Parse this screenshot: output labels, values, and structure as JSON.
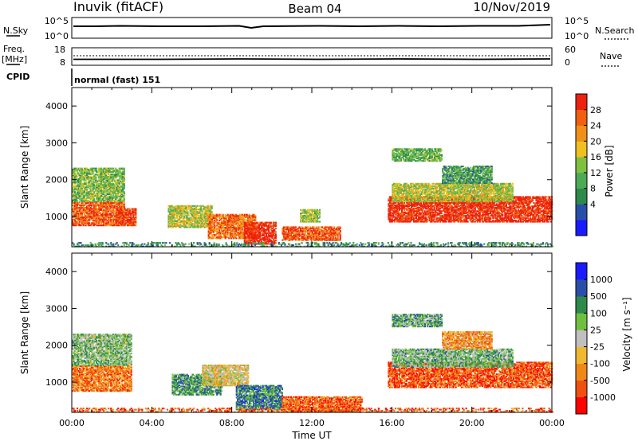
{
  "header": {
    "title_left": "Inuvik (fitACF)",
    "title_center": "Beam 04",
    "title_right": "10/Nov/2019"
  },
  "status_panels": {
    "nsky_label": "N.Sky",
    "nsky_ticks": [
      "10^5",
      "10^0"
    ],
    "nsearch_label": "N.Search",
    "nsearch_ticks": [
      "10^5",
      "10^0"
    ],
    "freq_label_line1": "Freq.",
    "freq_label_line2": "[MHz]",
    "freq_ticks": [
      "18",
      "8"
    ],
    "nave_label": "Nave",
    "nave_ticks": [
      "60",
      "0"
    ],
    "cpid_label": "CPID",
    "cpid_value": "normal (fast) 151"
  },
  "chart_data": [
    {
      "type": "heatmap",
      "name": "power-panel",
      "ylabel": "Slant Range [km]",
      "x_ticks": [
        "00:00",
        "04:00",
        "08:00",
        "12:00",
        "16:00",
        "20:00",
        "00:00"
      ],
      "y_ticks": [
        1000,
        2000,
        3000,
        4000
      ],
      "xlim_hours": [
        0,
        24
      ],
      "ylim_km": [
        180,
        4500
      ],
      "colorbar": {
        "label": "Power [dB]",
        "ticks": [
          "28",
          "24",
          "20",
          "16",
          "12",
          "8",
          "4"
        ],
        "colors": [
          "#1a1aff",
          "#2a4fa8",
          "#2e8a4a",
          "#4daa55",
          "#80c040",
          "#f0c020",
          "#f09018",
          "#f06010",
          "#ee2010"
        ]
      },
      "regions": [
        {
          "t": [
            0.0,
            2.6
          ],
          "r": [
            750,
            1400
          ],
          "level": 0.85
        },
        {
          "t": [
            0.0,
            2.6
          ],
          "r": [
            1400,
            2300
          ],
          "level": 0.45
        },
        {
          "t": [
            2.2,
            3.2
          ],
          "r": [
            750,
            1200
          ],
          "level": 0.9
        },
        {
          "t": [
            4.8,
            7.0
          ],
          "r": [
            700,
            1300
          ],
          "level": 0.55
        },
        {
          "t": [
            6.8,
            9.2
          ],
          "r": [
            400,
            1050
          ],
          "level": 0.8
        },
        {
          "t": [
            8.6,
            10.2
          ],
          "r": [
            250,
            850
          ],
          "level": 0.95
        },
        {
          "t": [
            10.5,
            13.4
          ],
          "r": [
            350,
            720
          ],
          "level": 0.85
        },
        {
          "t": [
            11.4,
            12.4
          ],
          "r": [
            850,
            1200
          ],
          "level": 0.5
        },
        {
          "t": [
            15.8,
            24.0
          ],
          "r": [
            850,
            1550
          ],
          "level": 0.95
        },
        {
          "t": [
            16.0,
            22.0
          ],
          "r": [
            1400,
            1900
          ],
          "level": 0.55
        },
        {
          "t": [
            16.0,
            18.5
          ],
          "r": [
            2500,
            2850
          ],
          "level": 0.4
        },
        {
          "t": [
            18.5,
            21.0
          ],
          "r": [
            1900,
            2350
          ],
          "level": 0.35
        },
        {
          "t": [
            0.0,
            24.0
          ],
          "r": [
            180,
            300
          ],
          "level": 0.3
        }
      ]
    },
    {
      "type": "heatmap",
      "name": "velocity-panel",
      "ylabel": "Slant Range [km]",
      "x_ticks": [
        "00:00",
        "04:00",
        "08:00",
        "12:00",
        "16:00",
        "20:00",
        "00:00"
      ],
      "xlabel": "Time UT",
      "y_ticks": [
        1000,
        2000,
        3000,
        4000
      ],
      "xlim_hours": [
        0,
        24
      ],
      "ylim_km": [
        180,
        4500
      ],
      "colorbar": {
        "label": "Velocity [m s⁻¹]",
        "ticks": [
          "1000",
          "500",
          "100",
          "25",
          "-25",
          "-100",
          "-500",
          "-1000"
        ],
        "colors": [
          "#ff0000",
          "#f05010",
          "#f08818",
          "#f0b830",
          "#c0c0c0",
          "#70c040",
          "#2e8a4a",
          "#2a4fa8",
          "#1a1aff"
        ]
      },
      "regions": [
        {
          "t": [
            0.0,
            3.0
          ],
          "r": [
            750,
            1450
          ],
          "level": 0.25
        },
        {
          "t": [
            0.0,
            3.0
          ],
          "r": [
            1450,
            2300
          ],
          "level": 0.6
        },
        {
          "t": [
            5.0,
            7.5
          ],
          "r": [
            650,
            1200
          ],
          "level": 0.7
        },
        {
          "t": [
            6.5,
            8.8
          ],
          "r": [
            900,
            1450
          ],
          "level": 0.45
        },
        {
          "t": [
            8.2,
            10.5
          ],
          "r": [
            250,
            900
          ],
          "level": 0.75
        },
        {
          "t": [
            10.5,
            14.5
          ],
          "r": [
            200,
            600
          ],
          "level": 0.2
        },
        {
          "t": [
            15.8,
            24.0
          ],
          "r": [
            850,
            1550
          ],
          "level": 0.18
        },
        {
          "t": [
            16.0,
            22.0
          ],
          "r": [
            1400,
            1900
          ],
          "level": 0.62
        },
        {
          "t": [
            16.0,
            18.5
          ],
          "r": [
            2500,
            2850
          ],
          "level": 0.65
        },
        {
          "t": [
            18.5,
            21.0
          ],
          "r": [
            1900,
            2350
          ],
          "level": 0.3
        },
        {
          "t": [
            0.0,
            24.0
          ],
          "r": [
            180,
            300
          ],
          "level": 0.2
        }
      ]
    }
  ]
}
